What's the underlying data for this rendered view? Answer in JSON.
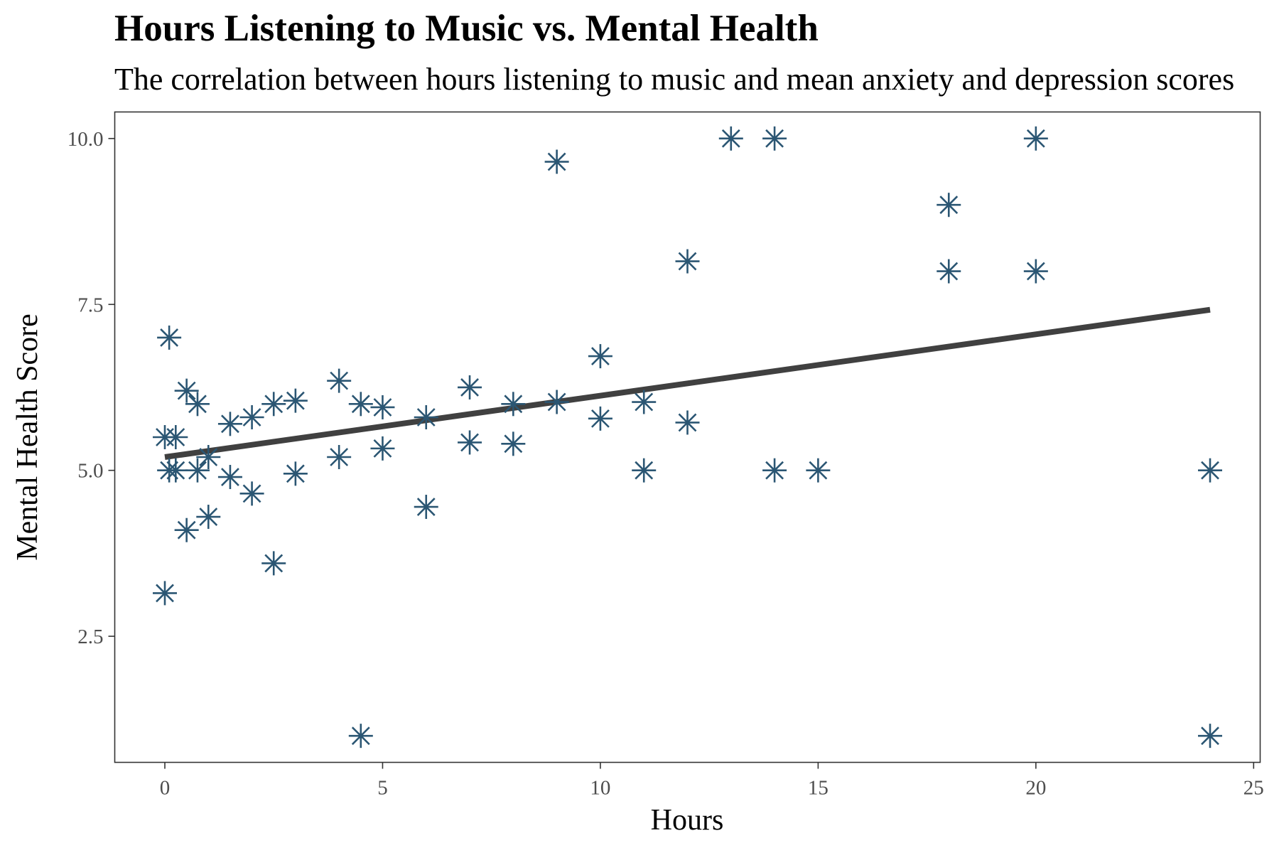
{
  "chart_data": {
    "type": "scatter",
    "title": "Hours Listening to Music vs. Mental Health",
    "subtitle": "The correlation between hours listening to music and mean anxiety and depression scores",
    "xlabel": "Hours",
    "ylabel": "Mental Health Score",
    "xlim": [
      -1.15,
      25.15
    ],
    "ylim": [
      0.6,
      10.4
    ],
    "xticks": [
      0,
      5,
      10,
      15,
      20,
      25
    ],
    "yticks": [
      2.5,
      5.0,
      7.5,
      10.0
    ],
    "ytick_labels": [
      "2.5",
      "5.0",
      "7.5",
      "10.0"
    ],
    "grid": false,
    "point_shape": "asterisk",
    "colors": {
      "points": "#2b5673",
      "trend_line": "#404040",
      "frame": "#333333"
    },
    "points": [
      {
        "x": 0,
        "y": 3.15
      },
      {
        "x": 0,
        "y": 5.5
      },
      {
        "x": 0.1,
        "y": 5.0
      },
      {
        "x": 0.1,
        "y": 7.0
      },
      {
        "x": 0.25,
        "y": 5.5
      },
      {
        "x": 0.25,
        "y": 5.0
      },
      {
        "x": 0.5,
        "y": 6.2
      },
      {
        "x": 0.5,
        "y": 4.1
      },
      {
        "x": 0.75,
        "y": 6.0
      },
      {
        "x": 0.75,
        "y": 5.0
      },
      {
        "x": 1,
        "y": 5.2
      },
      {
        "x": 1,
        "y": 4.3
      },
      {
        "x": 1.5,
        "y": 5.7
      },
      {
        "x": 1.5,
        "y": 4.9
      },
      {
        "x": 2,
        "y": 5.8
      },
      {
        "x": 2,
        "y": 4.65
      },
      {
        "x": 2.5,
        "y": 6.0
      },
      {
        "x": 2.5,
        "y": 3.6
      },
      {
        "x": 3,
        "y": 6.05
      },
      {
        "x": 3,
        "y": 4.95
      },
      {
        "x": 4,
        "y": 6.35
      },
      {
        "x": 4,
        "y": 5.2
      },
      {
        "x": 4.5,
        "y": 6.0
      },
      {
        "x": 4.5,
        "y": 1.0
      },
      {
        "x": 5,
        "y": 5.95
      },
      {
        "x": 5,
        "y": 5.33
      },
      {
        "x": 6,
        "y": 5.8
      },
      {
        "x": 6,
        "y": 4.45
      },
      {
        "x": 7,
        "y": 6.25
      },
      {
        "x": 7,
        "y": 5.42
      },
      {
        "x": 8,
        "y": 6.0
      },
      {
        "x": 8,
        "y": 5.4
      },
      {
        "x": 9,
        "y": 9.65
      },
      {
        "x": 9,
        "y": 6.03
      },
      {
        "x": 10,
        "y": 6.72
      },
      {
        "x": 10,
        "y": 5.78
      },
      {
        "x": 11,
        "y": 6.03
      },
      {
        "x": 11,
        "y": 5.0
      },
      {
        "x": 12,
        "y": 8.15
      },
      {
        "x": 12,
        "y": 5.72
      },
      {
        "x": 13,
        "y": 10.0
      },
      {
        "x": 14,
        "y": 10.0
      },
      {
        "x": 14,
        "y": 5.0
      },
      {
        "x": 15,
        "y": 5.0
      },
      {
        "x": 18,
        "y": 9.0
      },
      {
        "x": 18,
        "y": 8.0
      },
      {
        "x": 20,
        "y": 10.0
      },
      {
        "x": 20,
        "y": 8.0
      },
      {
        "x": 24,
        "y": 5.0
      },
      {
        "x": 24,
        "y": 1.0
      }
    ],
    "trend_line": {
      "x": [
        0,
        24
      ],
      "y": [
        5.2,
        7.42
      ]
    }
  }
}
